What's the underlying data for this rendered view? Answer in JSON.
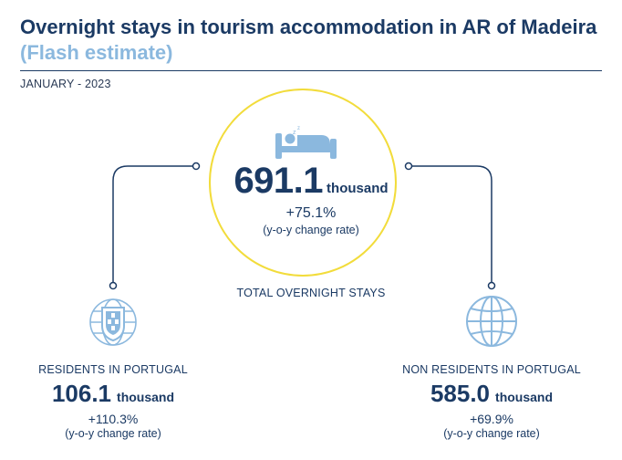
{
  "header": {
    "title_line1": "Overnight stays in tourism accommodation in AR of Madeira",
    "title_line2": "(Flash estimate)",
    "period": "JANUARY - 2023"
  },
  "total": {
    "value": "691.1",
    "unit": "thousand",
    "rate": "+75.1%",
    "rate_note": "(y-o-y change rate)",
    "label": "TOTAL OVERNIGHT STAYS",
    "icon": "bed-icon"
  },
  "residents": {
    "label": "RESIDENTS IN PORTUGAL",
    "value": "106.1",
    "unit": "thousand",
    "rate": "+110.3%",
    "rate_note": "(y-o-y change rate)",
    "icon": "portugal-coat-of-arms-icon"
  },
  "non_residents": {
    "label": "NON RESIDENTS IN PORTUGAL",
    "value": "585.0",
    "unit": "thousand",
    "rate": "+69.9%",
    "rate_note": "(y-o-y change rate)",
    "icon": "globe-icon"
  },
  "colors": {
    "navy": "#1b3a64",
    "light_blue": "#8bb8de",
    "yellow": "#f2dc3b"
  }
}
